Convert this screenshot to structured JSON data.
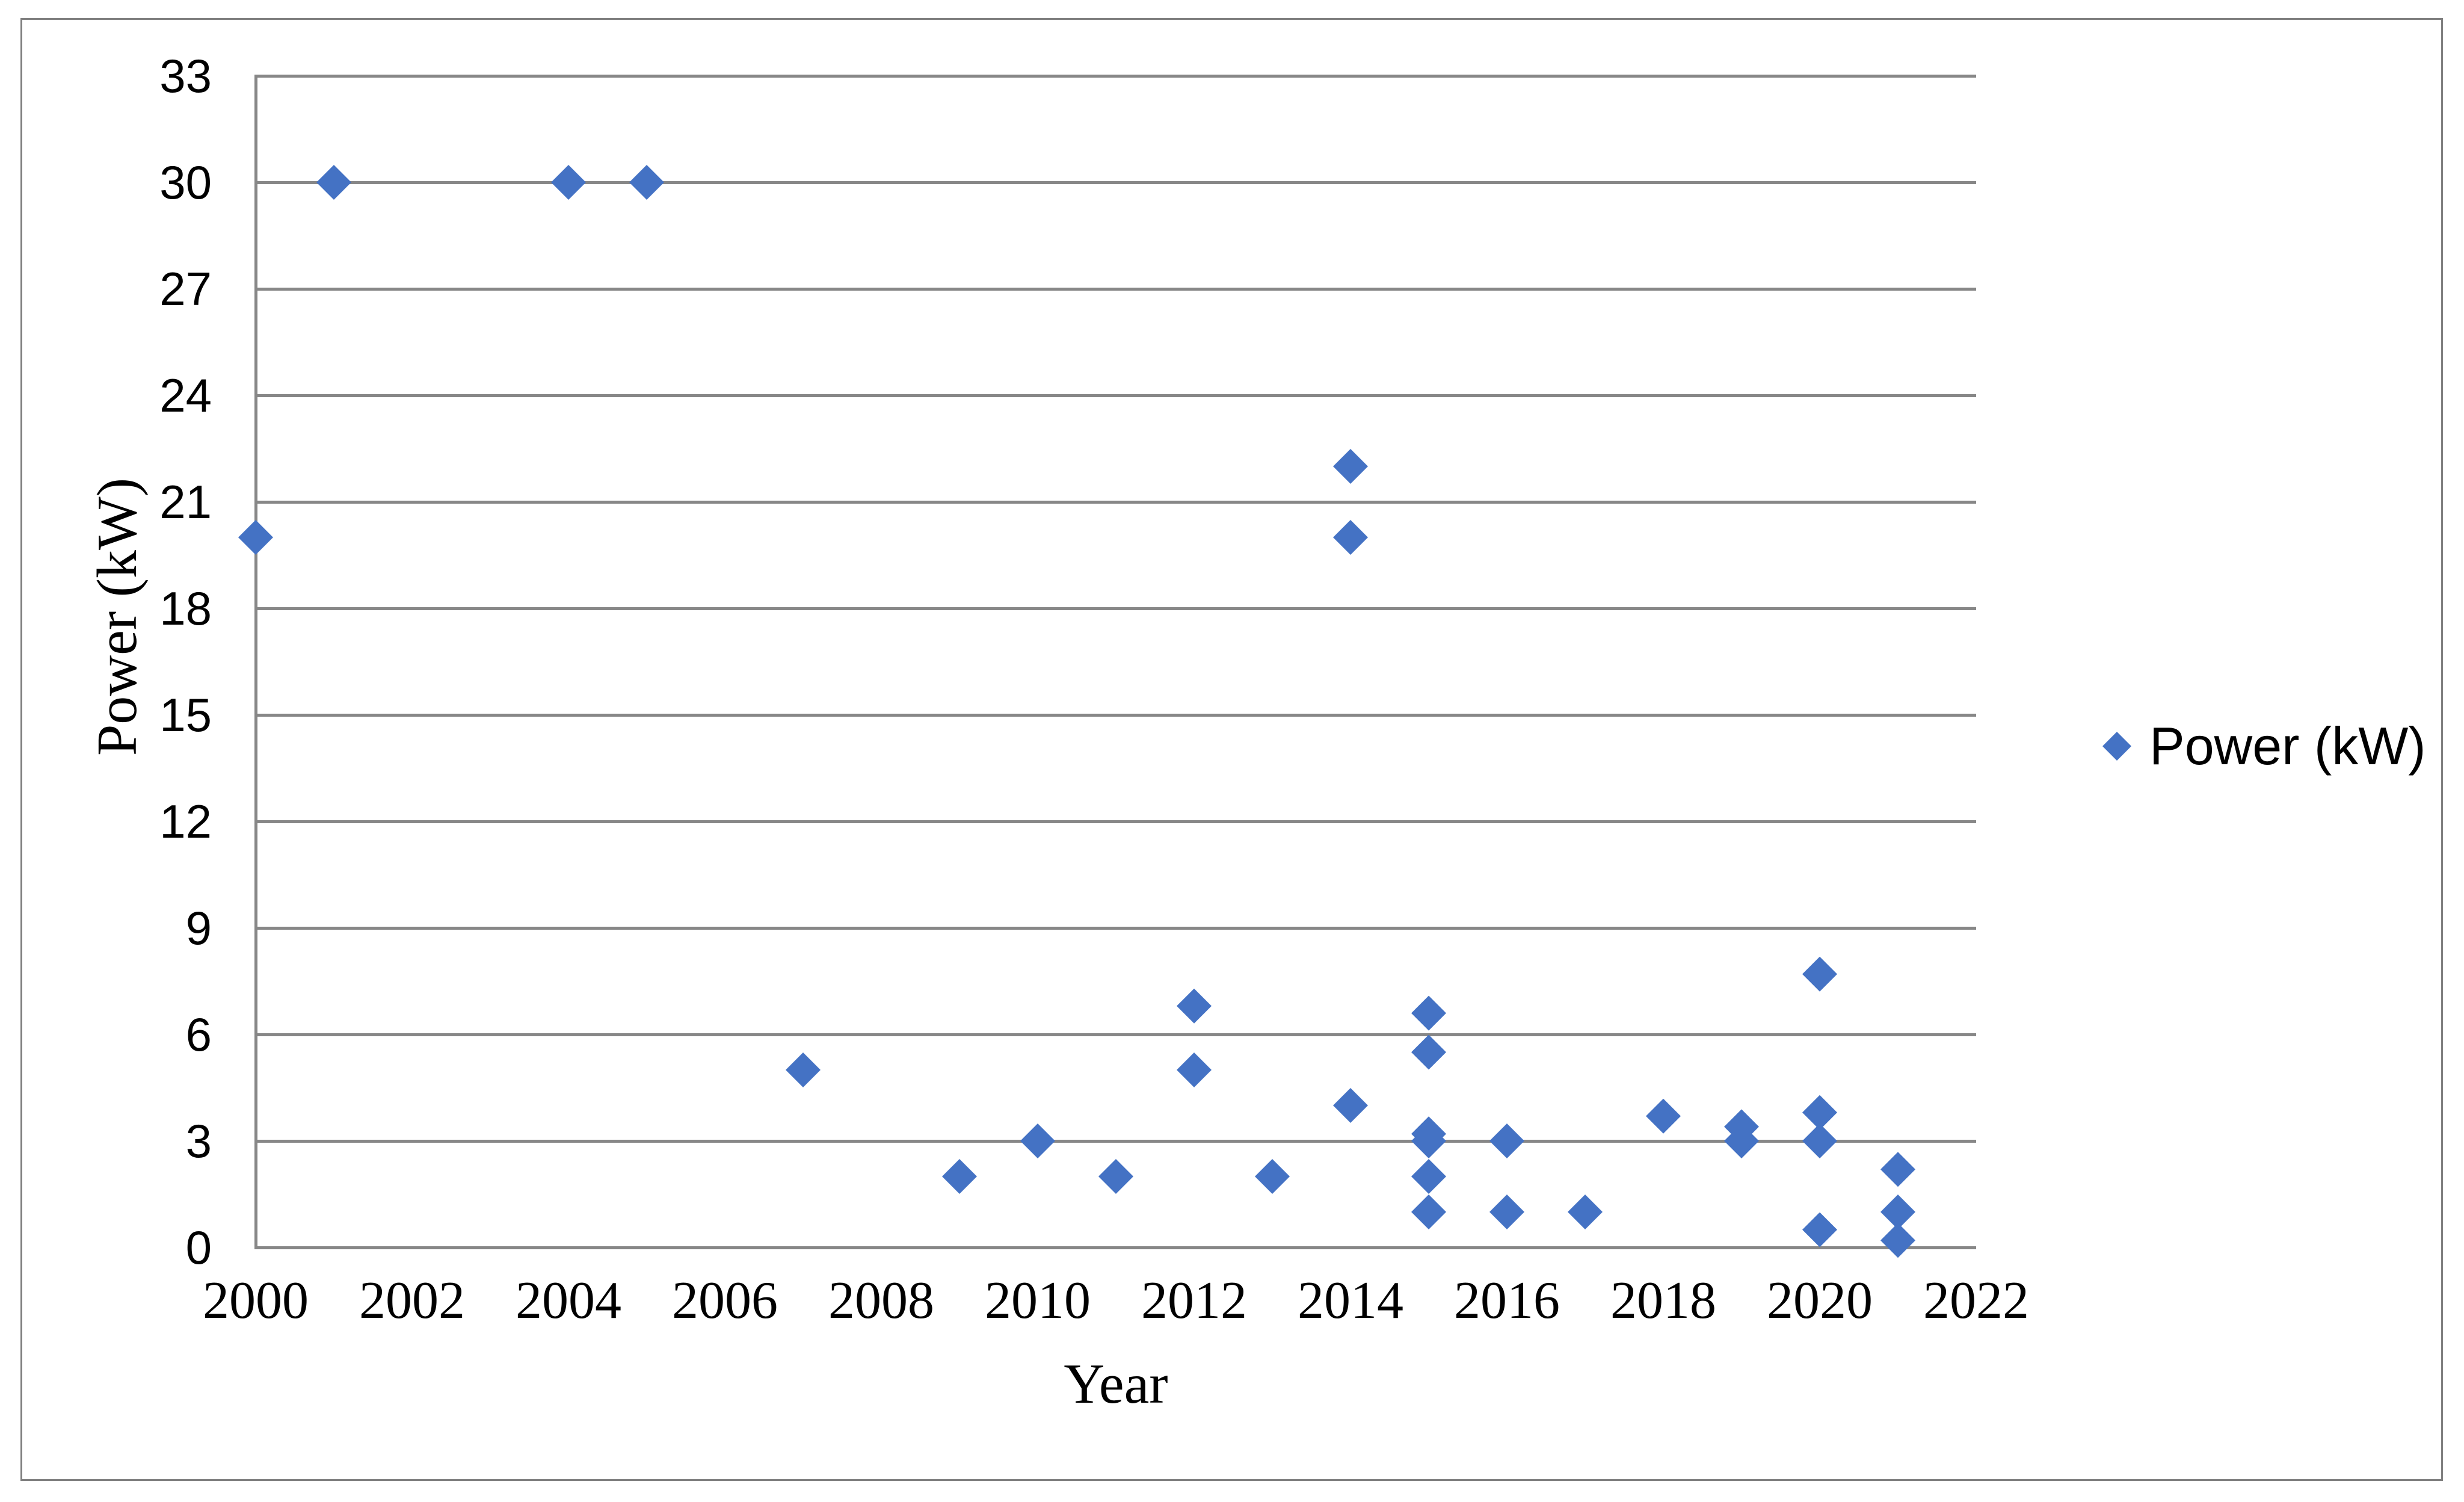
{
  "figure": {
    "background": "#ffffff",
    "border_color": "#808080",
    "gridline_color": "#878787"
  },
  "chart_data": {
    "type": "scatter",
    "title": "",
    "xlabel": "Year",
    "ylabel": "Power (kW)",
    "xlim": [
      2000,
      2022
    ],
    "ylim": [
      0,
      33
    ],
    "x_ticks": [
      2000,
      2002,
      2004,
      2006,
      2008,
      2010,
      2012,
      2014,
      2016,
      2018,
      2020,
      2022
    ],
    "y_ticks": [
      0,
      3,
      6,
      9,
      12,
      15,
      18,
      21,
      24,
      27,
      30,
      33
    ],
    "grid": "horizontal",
    "marker": "diamond",
    "marker_color": "#4472C4",
    "legend": {
      "position": "right",
      "label": "Power (kW)",
      "marker": "diamond",
      "color": "#4472C4"
    },
    "series": [
      {
        "name": "Power (kW)",
        "marker": "diamond",
        "color": "#4472C4",
        "points": [
          {
            "x": 2000,
            "y": 20
          },
          {
            "x": 2001,
            "y": 30
          },
          {
            "x": 2004,
            "y": 30
          },
          {
            "x": 2005,
            "y": 30
          },
          {
            "x": 2007,
            "y": 5
          },
          {
            "x": 2009,
            "y": 2
          },
          {
            "x": 2010,
            "y": 3
          },
          {
            "x": 2011,
            "y": 2
          },
          {
            "x": 2012,
            "y": 6.8
          },
          {
            "x": 2012,
            "y": 5
          },
          {
            "x": 2013,
            "y": 2
          },
          {
            "x": 2014,
            "y": 22
          },
          {
            "x": 2014,
            "y": 20
          },
          {
            "x": 2014,
            "y": 4
          },
          {
            "x": 2015,
            "y": 6.6
          },
          {
            "x": 2015,
            "y": 5.5
          },
          {
            "x": 2015,
            "y": 3.2
          },
          {
            "x": 2015,
            "y": 3
          },
          {
            "x": 2015,
            "y": 2
          },
          {
            "x": 2015,
            "y": 1
          },
          {
            "x": 2016,
            "y": 3
          },
          {
            "x": 2016,
            "y": 1
          },
          {
            "x": 2017,
            "y": 1
          },
          {
            "x": 2018,
            "y": 3.7
          },
          {
            "x": 2019,
            "y": 3.4
          },
          {
            "x": 2019,
            "y": 3
          },
          {
            "x": 2020,
            "y": 7.7
          },
          {
            "x": 2020,
            "y": 3.8
          },
          {
            "x": 2020,
            "y": 3
          },
          {
            "x": 2020,
            "y": 0.5
          },
          {
            "x": 2021,
            "y": 2.2
          },
          {
            "x": 2021,
            "y": 1
          },
          {
            "x": 2021,
            "y": 0.2
          }
        ]
      }
    ]
  }
}
